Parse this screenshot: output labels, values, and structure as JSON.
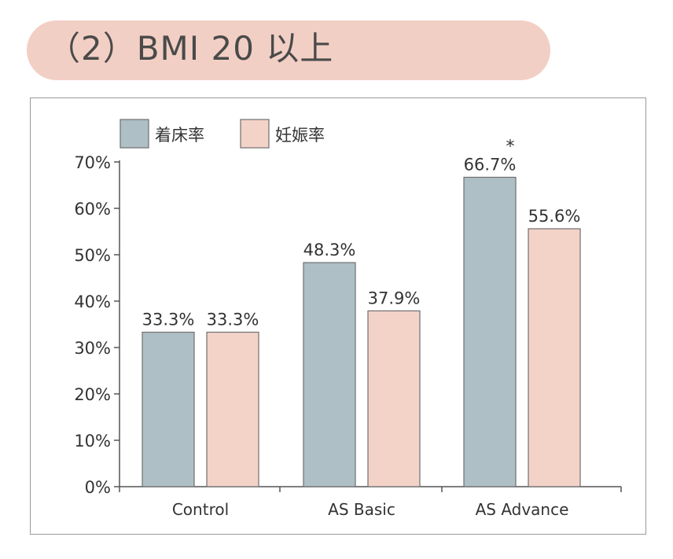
{
  "title": "（2）BMI 20 以上",
  "chart_data": {
    "type": "bar",
    "categories": [
      "Control",
      "AS Basic",
      "AS Advance"
    ],
    "series": [
      {
        "name": "着床率",
        "values": [
          33.3,
          48.3,
          66.7
        ],
        "labels": [
          "33.3%",
          "48.3%",
          "66.7%"
        ],
        "color": "#aebfc6"
      },
      {
        "name": "妊娠率",
        "values": [
          33.3,
          37.9,
          55.6
        ],
        "labels": [
          "33.3%",
          "37.9%",
          "55.6%"
        ],
        "color": "#f3d2c8"
      }
    ],
    "yticks": [
      "0%",
      "10%",
      "20%",
      "30%",
      "40%",
      "50%",
      "60%",
      "70%"
    ],
    "ylim": [
      0,
      70
    ],
    "annotation": {
      "text": "*",
      "category": "AS Advance",
      "series": "着床率"
    },
    "legend": "top-left",
    "grid": false
  }
}
